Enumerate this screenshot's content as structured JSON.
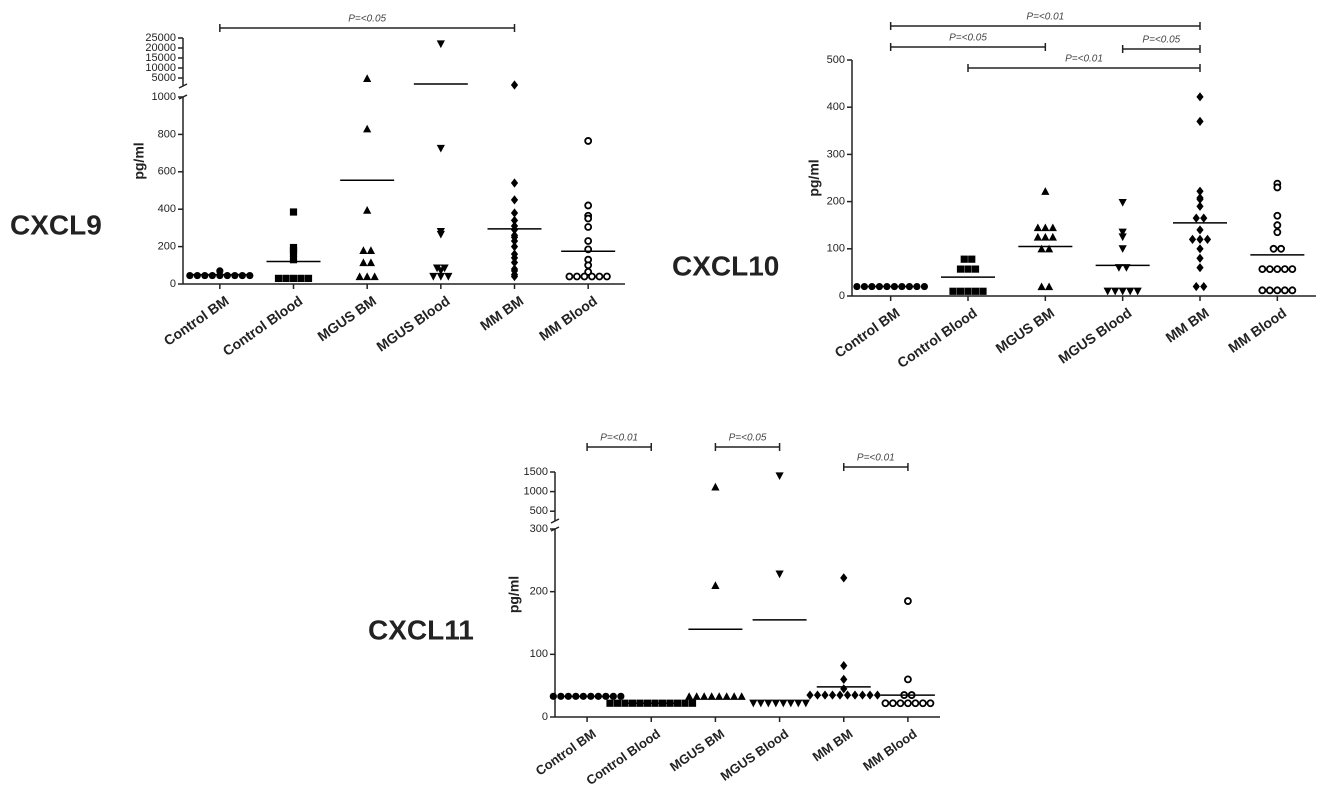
{
  "chart_data": [
    {
      "type": "scatter",
      "title": "CXCL9",
      "ylabel": "pg/ml",
      "categories": [
        "Control BM",
        "Control Blood",
        "MGUS BM",
        "MGUS Blood",
        "MM BM",
        "MM Blood"
      ],
      "markers": [
        "circle",
        "square",
        "triangle-up",
        "triangle-down",
        "diamond",
        "circle-open"
      ],
      "color": "#000000",
      "values": [
        [
          45,
          45,
          45,
          45,
          45,
          45,
          45,
          45,
          45,
          70
        ],
        [
          385,
          195,
          180,
          165,
          130,
          30,
          30,
          30,
          30,
          30
        ],
        [
          4800,
          830,
          395,
          180,
          180,
          115,
          115,
          40,
          40,
          40
        ],
        [
          22000,
          725,
          280,
          265,
          85,
          85,
          70,
          40,
          40,
          40
        ],
        [
          1500,
          540,
          450,
          380,
          340,
          310,
          290,
          260,
          250,
          230,
          200,
          160,
          140,
          115,
          80,
          70,
          50,
          40
        ],
        [
          765,
          420,
          365,
          350,
          305,
          230,
          185,
          130,
          100,
          65,
          40,
          40,
          40,
          40,
          40,
          40
        ]
      ],
      "means": [
        50,
        120,
        555,
        2000,
        295,
        175
      ],
      "ylim": [
        0,
        1000
      ],
      "yticks": [
        0,
        200,
        400,
        600,
        800,
        1000
      ],
      "y_upper_lim": [
        1000,
        25000
      ],
      "y_upper_ticks": [
        5000,
        10000,
        15000,
        20000,
        25000
      ],
      "comparisons": [
        {
          "label": "P=<0.05",
          "between": [
            "Control BM",
            "MM BM"
          ]
        }
      ]
    },
    {
      "type": "scatter",
      "title": "CXCL10",
      "ylabel": "pg/ml",
      "categories": [
        "Control BM",
        "Control Blood",
        "MGUS BM",
        "MGUS Blood",
        "MM BM",
        "MM Blood"
      ],
      "markers": [
        "circle",
        "square",
        "triangle-up",
        "triangle-down",
        "diamond",
        "circle-open"
      ],
      "color": "#000000",
      "values": [
        [
          20,
          20,
          20,
          20,
          20,
          20,
          20,
          20,
          20,
          20
        ],
        [
          78,
          78,
          57,
          57,
          57,
          10,
          10,
          10,
          10,
          10
        ],
        [
          222,
          145,
          145,
          145,
          125,
          125,
          125,
          100,
          100,
          20,
          20
        ],
        [
          198,
          135,
          125,
          100,
          60,
          60,
          10,
          10,
          10,
          10,
          10
        ],
        [
          422,
          370,
          222,
          208,
          205,
          190,
          165,
          165,
          140,
          120,
          120,
          120,
          100,
          80,
          60,
          20,
          20
        ],
        [
          238,
          230,
          170,
          150,
          135,
          100,
          100,
          57,
          57,
          57,
          57,
          57,
          12,
          12,
          12,
          12,
          12
        ]
      ],
      "means": [
        20,
        40,
        105,
        65,
        155,
        87
      ],
      "ylim": [
        0,
        500
      ],
      "yticks": [
        0,
        100,
        200,
        300,
        400,
        500
      ],
      "comparisons": [
        {
          "label": "P=<0.01",
          "between": [
            "Control BM",
            "MM BM"
          ]
        },
        {
          "label": "P=<0.05",
          "between": [
            "Control BM",
            "MGUS BM"
          ]
        },
        {
          "label": "P=<0.05",
          "between": [
            "MGUS Blood",
            "MM BM"
          ]
        },
        {
          "label": "P=<0.01",
          "between": [
            "Control Blood",
            "MM BM"
          ]
        }
      ]
    },
    {
      "type": "scatter",
      "title": "CXCL11",
      "ylabel": "pg/ml",
      "categories": [
        "Control BM",
        "Control Blood",
        "MGUS BM",
        "MGUS Blood",
        "MM BM",
        "MM Blood"
      ],
      "markers": [
        "circle",
        "square",
        "triangle-up",
        "triangle-down",
        "diamond",
        "circle-open"
      ],
      "color": "#000000",
      "values": [
        [
          33,
          33,
          33,
          33,
          33,
          33,
          33,
          33,
          33,
          33
        ],
        [
          22,
          22,
          22,
          22,
          22,
          22,
          22,
          22,
          22,
          22,
          22,
          22
        ],
        [
          1120,
          210,
          33,
          33,
          33,
          33,
          33,
          33,
          33,
          33
        ],
        [
          1400,
          228,
          22,
          22,
          22,
          22,
          22,
          22,
          22,
          22
        ],
        [
          222,
          82,
          60,
          45,
          35,
          35,
          35,
          35,
          35,
          35,
          35,
          35,
          35,
          35
        ],
        [
          185,
          60,
          35,
          35,
          22,
          22,
          22,
          22,
          22,
          22,
          22
        ]
      ],
      "means": [
        33,
        22,
        140,
        155,
        48,
        35
      ],
      "ylim": [
        0,
        300
      ],
      "yticks": [
        0,
        100,
        200,
        300
      ],
      "y_upper_lim": [
        250,
        1500
      ],
      "y_upper_ticks": [
        500,
        1000,
        1500
      ],
      "comparisons": [
        {
          "label": "P=<0.01",
          "between": [
            "Control BM",
            "Control Blood"
          ]
        },
        {
          "label": "P=<0.05",
          "between": [
            "MGUS BM",
            "MGUS Blood"
          ]
        },
        {
          "label": "P=<0.01",
          "between": [
            "MM BM",
            "MM Blood"
          ]
        }
      ]
    }
  ]
}
